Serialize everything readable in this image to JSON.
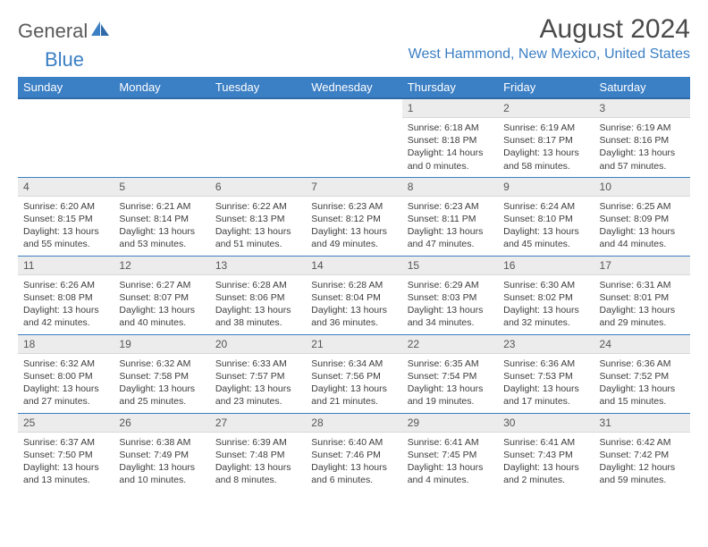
{
  "brand": {
    "part1": "General",
    "part2": "Blue"
  },
  "title": "August 2024",
  "location": "West Hammond, New Mexico, United States",
  "colors": {
    "header_bg": "#3b7fc4",
    "header_text": "#ffffff",
    "day_hdr_bg": "#ececec",
    "week_sep": "#3b7fc4",
    "logo_accent": "#3b7fc4",
    "logo_gray": "#5a5a5a",
    "body_text": "#3c3c3c",
    "background": "#ffffff"
  },
  "daynames": [
    "Sunday",
    "Monday",
    "Tuesday",
    "Wednesday",
    "Thursday",
    "Friday",
    "Saturday"
  ],
  "weeks": [
    [
      null,
      null,
      null,
      null,
      {
        "n": "1",
        "sr": "Sunrise: 6:18 AM",
        "ss": "Sunset: 8:18 PM",
        "dl": "Daylight: 14 hours and 0 minutes."
      },
      {
        "n": "2",
        "sr": "Sunrise: 6:19 AM",
        "ss": "Sunset: 8:17 PM",
        "dl": "Daylight: 13 hours and 58 minutes."
      },
      {
        "n": "3",
        "sr": "Sunrise: 6:19 AM",
        "ss": "Sunset: 8:16 PM",
        "dl": "Daylight: 13 hours and 57 minutes."
      }
    ],
    [
      {
        "n": "4",
        "sr": "Sunrise: 6:20 AM",
        "ss": "Sunset: 8:15 PM",
        "dl": "Daylight: 13 hours and 55 minutes."
      },
      {
        "n": "5",
        "sr": "Sunrise: 6:21 AM",
        "ss": "Sunset: 8:14 PM",
        "dl": "Daylight: 13 hours and 53 minutes."
      },
      {
        "n": "6",
        "sr": "Sunrise: 6:22 AM",
        "ss": "Sunset: 8:13 PM",
        "dl": "Daylight: 13 hours and 51 minutes."
      },
      {
        "n": "7",
        "sr": "Sunrise: 6:23 AM",
        "ss": "Sunset: 8:12 PM",
        "dl": "Daylight: 13 hours and 49 minutes."
      },
      {
        "n": "8",
        "sr": "Sunrise: 6:23 AM",
        "ss": "Sunset: 8:11 PM",
        "dl": "Daylight: 13 hours and 47 minutes."
      },
      {
        "n": "9",
        "sr": "Sunrise: 6:24 AM",
        "ss": "Sunset: 8:10 PM",
        "dl": "Daylight: 13 hours and 45 minutes."
      },
      {
        "n": "10",
        "sr": "Sunrise: 6:25 AM",
        "ss": "Sunset: 8:09 PM",
        "dl": "Daylight: 13 hours and 44 minutes."
      }
    ],
    [
      {
        "n": "11",
        "sr": "Sunrise: 6:26 AM",
        "ss": "Sunset: 8:08 PM",
        "dl": "Daylight: 13 hours and 42 minutes."
      },
      {
        "n": "12",
        "sr": "Sunrise: 6:27 AM",
        "ss": "Sunset: 8:07 PM",
        "dl": "Daylight: 13 hours and 40 minutes."
      },
      {
        "n": "13",
        "sr": "Sunrise: 6:28 AM",
        "ss": "Sunset: 8:06 PM",
        "dl": "Daylight: 13 hours and 38 minutes."
      },
      {
        "n": "14",
        "sr": "Sunrise: 6:28 AM",
        "ss": "Sunset: 8:04 PM",
        "dl": "Daylight: 13 hours and 36 minutes."
      },
      {
        "n": "15",
        "sr": "Sunrise: 6:29 AM",
        "ss": "Sunset: 8:03 PM",
        "dl": "Daylight: 13 hours and 34 minutes."
      },
      {
        "n": "16",
        "sr": "Sunrise: 6:30 AM",
        "ss": "Sunset: 8:02 PM",
        "dl": "Daylight: 13 hours and 32 minutes."
      },
      {
        "n": "17",
        "sr": "Sunrise: 6:31 AM",
        "ss": "Sunset: 8:01 PM",
        "dl": "Daylight: 13 hours and 29 minutes."
      }
    ],
    [
      {
        "n": "18",
        "sr": "Sunrise: 6:32 AM",
        "ss": "Sunset: 8:00 PM",
        "dl": "Daylight: 13 hours and 27 minutes."
      },
      {
        "n": "19",
        "sr": "Sunrise: 6:32 AM",
        "ss": "Sunset: 7:58 PM",
        "dl": "Daylight: 13 hours and 25 minutes."
      },
      {
        "n": "20",
        "sr": "Sunrise: 6:33 AM",
        "ss": "Sunset: 7:57 PM",
        "dl": "Daylight: 13 hours and 23 minutes."
      },
      {
        "n": "21",
        "sr": "Sunrise: 6:34 AM",
        "ss": "Sunset: 7:56 PM",
        "dl": "Daylight: 13 hours and 21 minutes."
      },
      {
        "n": "22",
        "sr": "Sunrise: 6:35 AM",
        "ss": "Sunset: 7:54 PM",
        "dl": "Daylight: 13 hours and 19 minutes."
      },
      {
        "n": "23",
        "sr": "Sunrise: 6:36 AM",
        "ss": "Sunset: 7:53 PM",
        "dl": "Daylight: 13 hours and 17 minutes."
      },
      {
        "n": "24",
        "sr": "Sunrise: 6:36 AM",
        "ss": "Sunset: 7:52 PM",
        "dl": "Daylight: 13 hours and 15 minutes."
      }
    ],
    [
      {
        "n": "25",
        "sr": "Sunrise: 6:37 AM",
        "ss": "Sunset: 7:50 PM",
        "dl": "Daylight: 13 hours and 13 minutes."
      },
      {
        "n": "26",
        "sr": "Sunrise: 6:38 AM",
        "ss": "Sunset: 7:49 PM",
        "dl": "Daylight: 13 hours and 10 minutes."
      },
      {
        "n": "27",
        "sr": "Sunrise: 6:39 AM",
        "ss": "Sunset: 7:48 PM",
        "dl": "Daylight: 13 hours and 8 minutes."
      },
      {
        "n": "28",
        "sr": "Sunrise: 6:40 AM",
        "ss": "Sunset: 7:46 PM",
        "dl": "Daylight: 13 hours and 6 minutes."
      },
      {
        "n": "29",
        "sr": "Sunrise: 6:41 AM",
        "ss": "Sunset: 7:45 PM",
        "dl": "Daylight: 13 hours and 4 minutes."
      },
      {
        "n": "30",
        "sr": "Sunrise: 6:41 AM",
        "ss": "Sunset: 7:43 PM",
        "dl": "Daylight: 13 hours and 2 minutes."
      },
      {
        "n": "31",
        "sr": "Sunrise: 6:42 AM",
        "ss": "Sunset: 7:42 PM",
        "dl": "Daylight: 12 hours and 59 minutes."
      }
    ]
  ]
}
